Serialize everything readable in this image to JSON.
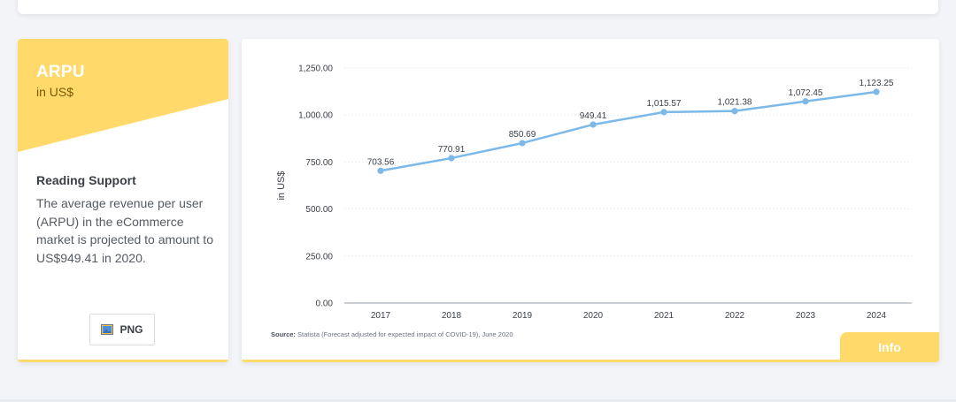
{
  "kpi": {
    "title": "ARPU",
    "unit": "in US$",
    "accent_color": "#ffd96a"
  },
  "reading_support": {
    "heading": "Reading Support",
    "text": "The average revenue per user (ARPU) in the eCommerce market is projected to amount to US$949.41 in 2020."
  },
  "download": {
    "label": "PNG",
    "icon": "image-icon"
  },
  "source": {
    "label": "Source:",
    "text": "Statista (Forecast adjusted for expected impact of COVID-19), June 2020"
  },
  "info_button": {
    "label": "Info"
  },
  "chart_data": {
    "type": "line",
    "title": "",
    "xlabel": "",
    "ylabel": "in US$",
    "ylim": [
      0,
      1250
    ],
    "yticks": [
      "0.00",
      "250.00",
      "500.00",
      "750.00",
      "1,000.00",
      "1,250.00"
    ],
    "grid": true,
    "line_color": "#7cb9e8",
    "categories": [
      "2017",
      "2018",
      "2019",
      "2020",
      "2021",
      "2022",
      "2023",
      "2024"
    ],
    "series": [
      {
        "values": [
          703.56,
          770.91,
          850.69,
          949.41,
          1015.57,
          1021.38,
          1072.45,
          1123.25
        ],
        "labels": [
          "703.56",
          "770.91",
          "850.69",
          "949.41",
          "1,015.57",
          "1,021.38",
          "1,072.45",
          "1,123.25"
        ]
      }
    ]
  }
}
